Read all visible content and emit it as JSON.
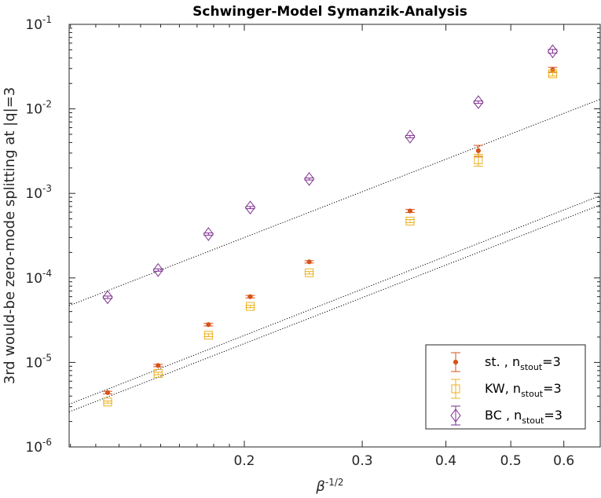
{
  "chart_data": {
    "type": "scatter",
    "title": "Schwinger-Model Symanzik-Analysis",
    "xlabel": {
      "base": "β",
      "sup": "-1/2"
    },
    "ylabel": "3rd would-be zero-mode splitting at |q|=3",
    "x_scale": "log",
    "y_scale": "log",
    "xlim": [
      0.1095,
      0.68
    ],
    "ylim": [
      1e-06,
      0.1
    ],
    "x_ticks": [
      {
        "value": 0.2,
        "label": "0.2"
      },
      {
        "value": 0.3,
        "label": "0.3"
      },
      {
        "value": 0.4,
        "label": "0.4"
      },
      {
        "value": 0.5,
        "label": "0.5"
      },
      {
        "value": 0.6,
        "label": "0.6"
      }
    ],
    "y_ticks": [
      {
        "value": 1e-06,
        "base": "10",
        "exp": "-6"
      },
      {
        "value": 1e-05,
        "base": "10",
        "exp": "-5"
      },
      {
        "value": 0.0001,
        "base": "10",
        "exp": "-4"
      },
      {
        "value": 0.001,
        "base": "10",
        "exp": "-3"
      },
      {
        "value": 0.01,
        "base": "10",
        "exp": "-2"
      },
      {
        "value": 0.1,
        "base": "10",
        "exp": "-1"
      }
    ],
    "x": [
      0.125,
      0.1487,
      0.1768,
      0.2041,
      0.25,
      0.3536,
      0.4472,
      0.5774
    ],
    "series": [
      {
        "name": "st. , n",
        "name_sub": "stout",
        "name_tail": "=3",
        "color": "#d95319",
        "marker": "dot",
        "y": [
          4.4e-06,
          9.2e-06,
          2.8e-05,
          6e-05,
          0.000155,
          0.00062,
          0.0032,
          0.029
        ],
        "err": [
          1.5e-07,
          3e-07,
          1e-06,
          2e-06,
          5e-06,
          2.5e-05,
          0.0005,
          0.002
        ]
      },
      {
        "name": "KW, n",
        "name_sub": "stout",
        "name_tail": "=3",
        "color": "#edb120",
        "marker": "square",
        "y": [
          3.4e-06,
          7.4e-06,
          2.1e-05,
          4.6e-05,
          0.000115,
          0.00047,
          0.0025,
          0.026
        ],
        "err": [
          1e-07,
          2.5e-07,
          8e-07,
          1.5e-06,
          4e-06,
          2e-05,
          0.0004,
          0.0015
        ]
      },
      {
        "name": "BC , n",
        "name_sub": "stout",
        "name_tail": "=3",
        "color": "#7e2f8e",
        "marker": "diamond",
        "y": [
          5.9e-05,
          0.000124,
          0.00033,
          0.00068,
          0.00148,
          0.0047,
          0.012,
          0.048
        ],
        "err": [
          2e-06,
          4e-06,
          1e-05,
          2e-05,
          4e-05,
          0.00015,
          0.0004,
          0.0025
        ]
      }
    ],
    "fit_lines": [
      {
        "style": "dotted",
        "color": "#000000",
        "points": [
          [
            0.1095,
            4.7e-05
          ],
          [
            0.68,
            0.013
          ]
        ]
      },
      {
        "style": "dotted",
        "color": "#000000",
        "points": [
          [
            0.1095,
            3.2e-06
          ],
          [
            0.68,
            0.00094
          ]
        ]
      },
      {
        "style": "dotted",
        "color": "#000000",
        "points": [
          [
            0.1095,
            2.6e-06
          ],
          [
            0.68,
            0.00073
          ]
        ]
      }
    ],
    "legend_position": "bottom-right",
    "grid": false
  }
}
